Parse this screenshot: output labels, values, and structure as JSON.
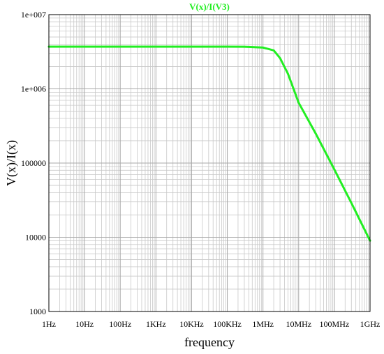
{
  "chart_data": {
    "type": "line",
    "title": "V(x)/I(V3)",
    "xlabel": "frequency",
    "ylabel": "V(x)/I(x)",
    "x_scale": "log",
    "y_scale": "log",
    "xlim": [
      1,
      1000000000
    ],
    "ylim": [
      1000,
      10000000
    ],
    "grid": true,
    "x_ticks": [
      {
        "value": 1,
        "label": "1Hz"
      },
      {
        "value": 10,
        "label": "10Hz"
      },
      {
        "value": 100,
        "label": "100Hz"
      },
      {
        "value": 1000,
        "label": "1KHz"
      },
      {
        "value": 10000,
        "label": "10KHz"
      },
      {
        "value": 100000,
        "label": "100KHz"
      },
      {
        "value": 1000000,
        "label": "1MHz"
      },
      {
        "value": 10000000,
        "label": "10MHz"
      },
      {
        "value": 100000000,
        "label": "100MHz"
      },
      {
        "value": 1000000000,
        "label": "1GHz"
      }
    ],
    "y_ticks": [
      {
        "value": 1000,
        "label": "1000"
      },
      {
        "value": 10000,
        "label": "10000"
      },
      {
        "value": 100000,
        "label": "100000"
      },
      {
        "value": 1000000,
        "label": "1e+006"
      },
      {
        "value": 10000000,
        "label": "1e+007"
      }
    ],
    "series": [
      {
        "name": "V(x)/I(V3)",
        "color": "#22ee22",
        "x": [
          1,
          10,
          100,
          1000,
          10000,
          100000,
          300000,
          1000000,
          2000000,
          3000000,
          5000000,
          10000000,
          30000000,
          100000000,
          300000000,
          1000000000
        ],
        "y": [
          3700000,
          3700000,
          3700000,
          3700000,
          3700000,
          3700000,
          3690000,
          3600000,
          3300000,
          2600000,
          1600000,
          650000,
          250000,
          82000,
          29000,
          9000
        ]
      }
    ]
  },
  "colors": {
    "grid": "#c8c8c8",
    "frame": "#000000",
    "background": "#ffffff"
  }
}
